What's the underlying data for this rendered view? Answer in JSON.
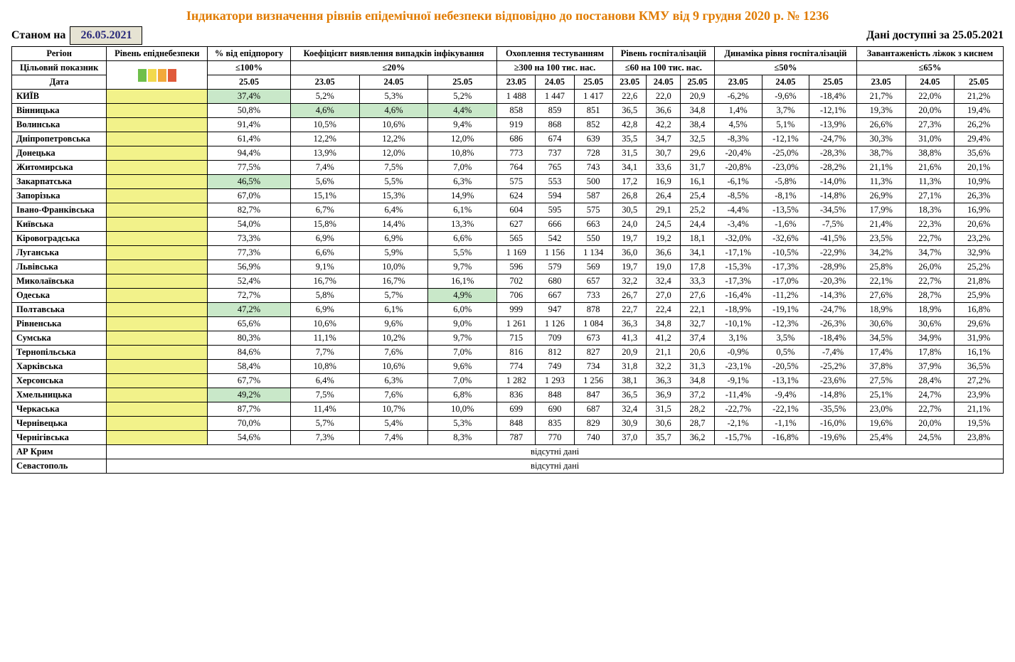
{
  "title": "Індикатори визначення рівнів епідемічної небезпеки відповідно до постанови КМУ від 9 грудня 2020 р. № 1236",
  "asof_label": "Станом на",
  "asof_date": "26.05.2021",
  "avail_label": "Дані доступні за 25.05.2021",
  "swatch_colors": [
    "#6fbf4b",
    "#f2d94e",
    "#f2a93b",
    "#e05a3a"
  ],
  "columns": {
    "region": "Регіон",
    "level": "Рівень епіднебезпеки",
    "threshold_pct": "% від епідпорогу",
    "detection": "Коефіцієнт виявлення випадків інфікування",
    "testing": "Охоплення тестуванням",
    "hosp_rate": "Рівень госпіталізацій",
    "hosp_dyn": "Динаміка рівня госпіталізацій",
    "oxygen": "Завантаженість ліжок з киснем",
    "target_label": "Цільовий показник",
    "date_label": "Дата"
  },
  "targets": {
    "threshold_pct": "≤100%",
    "detection": "≤20%",
    "testing": "≥300 на 100 тис. нас.",
    "hosp_rate": "≤60 на 100 тис. нас.",
    "hosp_dyn": "≤50%",
    "oxygen": "≤65%"
  },
  "dates": {
    "threshold_pct": [
      "25.05"
    ],
    "detection": [
      "23.05",
      "24.05",
      "25.05"
    ],
    "testing": [
      "23.05",
      "24.05",
      "25.05"
    ],
    "hosp_rate": [
      "23.05",
      "24.05",
      "25.05"
    ],
    "hosp_dyn": [
      "23.05",
      "24.05",
      "25.05"
    ],
    "oxygen": [
      "23.05",
      "24.05",
      "25.05"
    ]
  },
  "no_data_label": "відсутні дані",
  "rows": [
    {
      "region": "КИЇВ",
      "threshold": {
        "v": "37,4%",
        "hl": true
      },
      "det": [
        {
          "v": "5,2%"
        },
        {
          "v": "5,3%"
        },
        {
          "v": "5,2%"
        }
      ],
      "test": [
        "1 488",
        "1 447",
        "1 417"
      ],
      "hosp": [
        "22,6",
        "22,0",
        "20,9"
      ],
      "dyn": [
        "-6,2%",
        "-9,6%",
        "-18,4%"
      ],
      "oxy": [
        "21,7%",
        "22,0%",
        "21,2%"
      ]
    },
    {
      "region": "Вінницька",
      "threshold": {
        "v": "50,8%"
      },
      "det": [
        {
          "v": "4,6%",
          "hl": true
        },
        {
          "v": "4,6%",
          "hl": true
        },
        {
          "v": "4,4%",
          "hl": true
        }
      ],
      "test": [
        "858",
        "859",
        "851"
      ],
      "hosp": [
        "36,5",
        "36,6",
        "34,8"
      ],
      "dyn": [
        "1,4%",
        "3,7%",
        "-12,1%"
      ],
      "oxy": [
        "19,3%",
        "20,0%",
        "19,4%"
      ]
    },
    {
      "region": "Волинська",
      "threshold": {
        "v": "91,4%"
      },
      "det": [
        {
          "v": "10,5%"
        },
        {
          "v": "10,6%"
        },
        {
          "v": "9,4%"
        }
      ],
      "test": [
        "919",
        "868",
        "852"
      ],
      "hosp": [
        "42,8",
        "42,2",
        "38,4"
      ],
      "dyn": [
        "4,5%",
        "5,1%",
        "-13,9%"
      ],
      "oxy": [
        "26,6%",
        "27,3%",
        "26,2%"
      ]
    },
    {
      "region": "Дніпропетровська",
      "threshold": {
        "v": "61,4%"
      },
      "det": [
        {
          "v": "12,2%"
        },
        {
          "v": "12,2%"
        },
        {
          "v": "12,0%"
        }
      ],
      "test": [
        "686",
        "674",
        "639"
      ],
      "hosp": [
        "35,5",
        "34,7",
        "32,5"
      ],
      "dyn": [
        "-8,3%",
        "-12,1%",
        "-24,7%"
      ],
      "oxy": [
        "30,3%",
        "31,0%",
        "29,4%"
      ]
    },
    {
      "region": "Донецька",
      "threshold": {
        "v": "94,4%"
      },
      "det": [
        {
          "v": "13,9%"
        },
        {
          "v": "12,0%"
        },
        {
          "v": "10,8%"
        }
      ],
      "test": [
        "773",
        "737",
        "728"
      ],
      "hosp": [
        "31,5",
        "30,7",
        "29,6"
      ],
      "dyn": [
        "-20,4%",
        "-25,0%",
        "-28,3%"
      ],
      "oxy": [
        "38,7%",
        "38,8%",
        "35,6%"
      ]
    },
    {
      "region": "Житомирська",
      "threshold": {
        "v": "77,5%"
      },
      "det": [
        {
          "v": "7,4%"
        },
        {
          "v": "7,5%"
        },
        {
          "v": "7,0%"
        }
      ],
      "test": [
        "764",
        "765",
        "743"
      ],
      "hosp": [
        "34,1",
        "33,6",
        "31,7"
      ],
      "dyn": [
        "-20,8%",
        "-23,0%",
        "-28,2%"
      ],
      "oxy": [
        "21,1%",
        "21,6%",
        "20,1%"
      ]
    },
    {
      "region": "Закарпатська",
      "threshold": {
        "v": "46,5%",
        "hl": true
      },
      "det": [
        {
          "v": "5,6%"
        },
        {
          "v": "5,5%"
        },
        {
          "v": "6,3%"
        }
      ],
      "test": [
        "575",
        "553",
        "500"
      ],
      "hosp": [
        "17,2",
        "16,9",
        "16,1"
      ],
      "dyn": [
        "-6,1%",
        "-5,8%",
        "-14,0%"
      ],
      "oxy": [
        "11,3%",
        "11,3%",
        "10,9%"
      ]
    },
    {
      "region": "Запорізька",
      "threshold": {
        "v": "67,0%"
      },
      "det": [
        {
          "v": "15,1%"
        },
        {
          "v": "15,3%"
        },
        {
          "v": "14,9%"
        }
      ],
      "test": [
        "624",
        "594",
        "587"
      ],
      "hosp": [
        "26,8",
        "26,4",
        "25,4"
      ],
      "dyn": [
        "-8,5%",
        "-8,1%",
        "-14,8%"
      ],
      "oxy": [
        "26,9%",
        "27,1%",
        "26,3%"
      ]
    },
    {
      "region": "Івано-Франківська",
      "threshold": {
        "v": "82,7%"
      },
      "det": [
        {
          "v": "6,7%"
        },
        {
          "v": "6,4%"
        },
        {
          "v": "6,1%"
        }
      ],
      "test": [
        "604",
        "595",
        "575"
      ],
      "hosp": [
        "30,5",
        "29,1",
        "25,2"
      ],
      "dyn": [
        "-4,4%",
        "-13,5%",
        "-34,5%"
      ],
      "oxy": [
        "17,9%",
        "18,3%",
        "16,9%"
      ]
    },
    {
      "region": "Київська",
      "threshold": {
        "v": "54,0%"
      },
      "det": [
        {
          "v": "15,8%"
        },
        {
          "v": "14,4%"
        },
        {
          "v": "13,3%"
        }
      ],
      "test": [
        "627",
        "666",
        "663"
      ],
      "hosp": [
        "24,0",
        "24,5",
        "24,4"
      ],
      "dyn": [
        "-3,4%",
        "-1,6%",
        "-7,5%"
      ],
      "oxy": [
        "21,4%",
        "22,3%",
        "20,6%"
      ]
    },
    {
      "region": "Кіровоградська",
      "threshold": {
        "v": "73,3%"
      },
      "det": [
        {
          "v": "6,9%"
        },
        {
          "v": "6,9%"
        },
        {
          "v": "6,6%"
        }
      ],
      "test": [
        "565",
        "542",
        "550"
      ],
      "hosp": [
        "19,7",
        "19,2",
        "18,1"
      ],
      "dyn": [
        "-32,0%",
        "-32,6%",
        "-41,5%"
      ],
      "oxy": [
        "23,5%",
        "22,7%",
        "23,2%"
      ]
    },
    {
      "region": "Луганська",
      "threshold": {
        "v": "77,3%"
      },
      "det": [
        {
          "v": "6,6%"
        },
        {
          "v": "5,9%"
        },
        {
          "v": "5,5%"
        }
      ],
      "test": [
        "1 169",
        "1 156",
        "1 134"
      ],
      "hosp": [
        "36,0",
        "36,6",
        "34,1"
      ],
      "dyn": [
        "-17,1%",
        "-10,5%",
        "-22,9%"
      ],
      "oxy": [
        "34,2%",
        "34,7%",
        "32,9%"
      ]
    },
    {
      "region": "Львівська",
      "threshold": {
        "v": "56,9%"
      },
      "det": [
        {
          "v": "9,1%"
        },
        {
          "v": "10,0%"
        },
        {
          "v": "9,7%"
        }
      ],
      "test": [
        "596",
        "579",
        "569"
      ],
      "hosp": [
        "19,7",
        "19,0",
        "17,8"
      ],
      "dyn": [
        "-15,3%",
        "-17,3%",
        "-28,9%"
      ],
      "oxy": [
        "25,8%",
        "26,0%",
        "25,2%"
      ]
    },
    {
      "region": "Миколаївська",
      "threshold": {
        "v": "52,4%"
      },
      "det": [
        {
          "v": "16,7%"
        },
        {
          "v": "16,7%"
        },
        {
          "v": "16,1%"
        }
      ],
      "test": [
        "702",
        "680",
        "657"
      ],
      "hosp": [
        "32,2",
        "32,4",
        "33,3"
      ],
      "dyn": [
        "-17,3%",
        "-17,0%",
        "-20,3%"
      ],
      "oxy": [
        "22,1%",
        "22,7%",
        "21,8%"
      ]
    },
    {
      "region": "Одеська",
      "threshold": {
        "v": "72,7%"
      },
      "det": [
        {
          "v": "5,8%"
        },
        {
          "v": "5,7%"
        },
        {
          "v": "4,9%",
          "hl": true
        }
      ],
      "test": [
        "706",
        "667",
        "733"
      ],
      "hosp": [
        "26,7",
        "27,0",
        "27,6"
      ],
      "dyn": [
        "-16,4%",
        "-11,2%",
        "-14,3%"
      ],
      "oxy": [
        "27,6%",
        "28,7%",
        "25,9%"
      ]
    },
    {
      "region": "Полтавська",
      "threshold": {
        "v": "47,2%",
        "hl": true
      },
      "det": [
        {
          "v": "6,9%"
        },
        {
          "v": "6,1%"
        },
        {
          "v": "6,0%"
        }
      ],
      "test": [
        "999",
        "947",
        "878"
      ],
      "hosp": [
        "22,7",
        "22,4",
        "22,1"
      ],
      "dyn": [
        "-18,9%",
        "-19,1%",
        "-24,7%"
      ],
      "oxy": [
        "18,9%",
        "18,9%",
        "16,8%"
      ]
    },
    {
      "region": "Рівненська",
      "threshold": {
        "v": "65,6%"
      },
      "det": [
        {
          "v": "10,6%"
        },
        {
          "v": "9,6%"
        },
        {
          "v": "9,0%"
        }
      ],
      "test": [
        "1 261",
        "1 126",
        "1 084"
      ],
      "hosp": [
        "36,3",
        "34,8",
        "32,7"
      ],
      "dyn": [
        "-10,1%",
        "-12,3%",
        "-26,3%"
      ],
      "oxy": [
        "30,6%",
        "30,6%",
        "29,6%"
      ]
    },
    {
      "region": "Сумська",
      "threshold": {
        "v": "80,3%"
      },
      "det": [
        {
          "v": "11,1%"
        },
        {
          "v": "10,2%"
        },
        {
          "v": "9,7%"
        }
      ],
      "test": [
        "715",
        "709",
        "673"
      ],
      "hosp": [
        "41,3",
        "41,2",
        "37,4"
      ],
      "dyn": [
        "3,1%",
        "3,5%",
        "-18,4%"
      ],
      "oxy": [
        "34,5%",
        "34,9%",
        "31,9%"
      ]
    },
    {
      "region": "Тернопільська",
      "threshold": {
        "v": "84,6%"
      },
      "det": [
        {
          "v": "7,7%"
        },
        {
          "v": "7,6%"
        },
        {
          "v": "7,0%"
        }
      ],
      "test": [
        "816",
        "812",
        "827"
      ],
      "hosp": [
        "20,9",
        "21,1",
        "20,6"
      ],
      "dyn": [
        "-0,9%",
        "0,5%",
        "-7,4%"
      ],
      "oxy": [
        "17,4%",
        "17,8%",
        "16,1%"
      ]
    },
    {
      "region": "Харківська",
      "threshold": {
        "v": "58,4%"
      },
      "det": [
        {
          "v": "10,8%"
        },
        {
          "v": "10,6%"
        },
        {
          "v": "9,6%"
        }
      ],
      "test": [
        "774",
        "749",
        "734"
      ],
      "hosp": [
        "31,8",
        "32,2",
        "31,3"
      ],
      "dyn": [
        "-23,1%",
        "-20,5%",
        "-25,2%"
      ],
      "oxy": [
        "37,8%",
        "37,9%",
        "36,5%"
      ]
    },
    {
      "region": "Херсонська",
      "threshold": {
        "v": "67,7%"
      },
      "det": [
        {
          "v": "6,4%"
        },
        {
          "v": "6,3%"
        },
        {
          "v": "7,0%"
        }
      ],
      "test": [
        "1 282",
        "1 293",
        "1 256"
      ],
      "hosp": [
        "38,1",
        "36,3",
        "34,8"
      ],
      "dyn": [
        "-9,1%",
        "-13,1%",
        "-23,6%"
      ],
      "oxy": [
        "27,5%",
        "28,4%",
        "27,2%"
      ]
    },
    {
      "region": "Хмельницька",
      "threshold": {
        "v": "49,2%",
        "hl": true
      },
      "det": [
        {
          "v": "7,5%"
        },
        {
          "v": "7,6%"
        },
        {
          "v": "6,8%"
        }
      ],
      "test": [
        "836",
        "848",
        "847"
      ],
      "hosp": [
        "36,5",
        "36,9",
        "37,2"
      ],
      "dyn": [
        "-11,4%",
        "-9,4%",
        "-14,8%"
      ],
      "oxy": [
        "25,1%",
        "24,7%",
        "23,9%"
      ]
    },
    {
      "region": "Черкаська",
      "threshold": {
        "v": "87,7%"
      },
      "det": [
        {
          "v": "11,4%"
        },
        {
          "v": "10,7%"
        },
        {
          "v": "10,0%"
        }
      ],
      "test": [
        "699",
        "690",
        "687"
      ],
      "hosp": [
        "32,4",
        "31,5",
        "28,2"
      ],
      "dyn": [
        "-22,7%",
        "-22,1%",
        "-35,5%"
      ],
      "oxy": [
        "23,0%",
        "22,7%",
        "21,1%"
      ]
    },
    {
      "region": "Чернівецька",
      "threshold": {
        "v": "70,0%"
      },
      "det": [
        {
          "v": "5,7%"
        },
        {
          "v": "5,4%"
        },
        {
          "v": "5,3%"
        }
      ],
      "test": [
        "848",
        "835",
        "829"
      ],
      "hosp": [
        "30,9",
        "30,6",
        "28,7"
      ],
      "dyn": [
        "-2,1%",
        "-1,1%",
        "-16,0%"
      ],
      "oxy": [
        "19,6%",
        "20,0%",
        "19,5%"
      ]
    },
    {
      "region": "Чернігівська",
      "threshold": {
        "v": "54,6%"
      },
      "det": [
        {
          "v": "7,3%"
        },
        {
          "v": "7,4%"
        },
        {
          "v": "8,3%"
        }
      ],
      "test": [
        "787",
        "770",
        "740"
      ],
      "hosp": [
        "37,0",
        "35,7",
        "36,2"
      ],
      "dyn": [
        "-15,7%",
        "-16,8%",
        "-19,6%"
      ],
      "oxy": [
        "25,4%",
        "24,5%",
        "23,8%"
      ]
    }
  ],
  "no_data_rows": [
    "АР Крим",
    "Севастополь"
  ]
}
